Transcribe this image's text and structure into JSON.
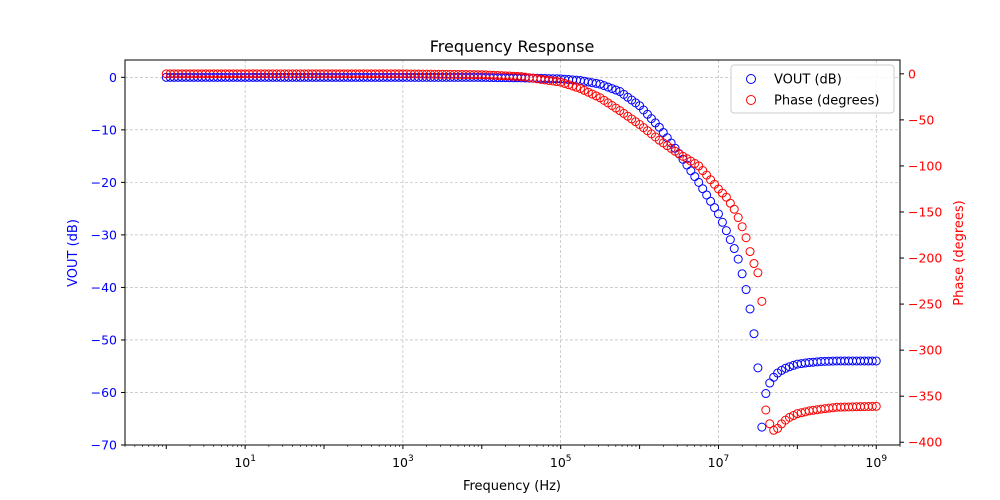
{
  "chart_data": {
    "type": "scatter",
    "title": "Frequency Response",
    "xlabel": "Frequency (Hz)",
    "ylabel_left": "VOUT (dB)",
    "ylabel_right": "Phase (degrees)",
    "xscale": "log",
    "xlim": [
      0.3,
      2000000000
    ],
    "ylim_left": [
      -70,
      3.3
    ],
    "ylim_right": [
      -403,
      15
    ],
    "x_ticks": [
      {
        "value": 10,
        "base": "10",
        "exp": "1"
      },
      {
        "value": 1000,
        "base": "10",
        "exp": "3"
      },
      {
        "value": 100000,
        "base": "10",
        "exp": "5"
      },
      {
        "value": 10000000,
        "base": "10",
        "exp": "7"
      },
      {
        "value": 1000000000,
        "base": "10",
        "exp": "9"
      }
    ],
    "y_ticks_left": [
      {
        "value": 0,
        "label": "0"
      },
      {
        "value": -10,
        "label": "−10"
      },
      {
        "value": -20,
        "label": "−20"
      },
      {
        "value": -30,
        "label": "−30"
      },
      {
        "value": -40,
        "label": "−40"
      },
      {
        "value": -50,
        "label": "−50"
      },
      {
        "value": -60,
        "label": "−60"
      },
      {
        "value": -70,
        "label": "−70"
      }
    ],
    "y_ticks_right": [
      {
        "value": 0,
        "label": "0"
      },
      {
        "value": -50,
        "label": "−50"
      },
      {
        "value": -100,
        "label": "−100"
      },
      {
        "value": -150,
        "label": "−150"
      },
      {
        "value": -200,
        "label": "−200"
      },
      {
        "value": -250,
        "label": "−250"
      },
      {
        "value": -300,
        "label": "−300"
      },
      {
        "value": -350,
        "label": "−350"
      },
      {
        "value": -400,
        "label": "−400"
      }
    ],
    "grid": true,
    "legend_placement": "top-right",
    "sweep": {
      "start_hz": 1,
      "stop_hz": 1000000000,
      "points_per_decade": 20
    },
    "series": [
      {
        "name": "VOUT (dB)",
        "axis": "left",
        "color": "#0000ff",
        "points": [
          [
            1,
            0
          ],
          [
            1000,
            0
          ],
          [
            10000,
            -0.01
          ],
          [
            31600,
            -0.1
          ],
          [
            100000,
            -0.3
          ],
          [
            177800,
            -0.6
          ],
          [
            316200,
            -1.3
          ],
          [
            562300,
            -2.7
          ],
          [
            1000000,
            -5.4
          ],
          [
            1778000,
            -9.5
          ],
          [
            3162000,
            -14.5
          ],
          [
            5623000,
            -20.0
          ],
          [
            10000000,
            -26.0
          ],
          [
            12600000,
            -29.2
          ],
          [
            15850000,
            -32.6
          ],
          [
            17780000,
            -34.6
          ],
          [
            19950000,
            -37.4
          ],
          [
            22390000,
            -40.4
          ],
          [
            25120000,
            -44.1
          ],
          [
            28180000,
            -48.8
          ],
          [
            31620000,
            -55.3
          ],
          [
            35480000,
            -66.6
          ],
          [
            39810000,
            -60.2
          ],
          [
            44670000,
            -58.2
          ],
          [
            50120000,
            -57.1
          ],
          [
            56230000,
            -56.3
          ],
          [
            63100000,
            -55.8
          ],
          [
            70790000,
            -55.4
          ],
          [
            79430000,
            -55.1
          ],
          [
            100000000,
            -54.6
          ],
          [
            141300000,
            -54.3
          ],
          [
            199500000,
            -54.1
          ],
          [
            316200000,
            -54.0
          ],
          [
            1000000000,
            -54.0
          ]
        ]
      },
      {
        "name": "Phase (degrees)",
        "axis": "right",
        "color": "#ff0000",
        "points": [
          [
            1,
            0
          ],
          [
            1000,
            -0.05
          ],
          [
            10000,
            -1
          ],
          [
            31600,
            -3
          ],
          [
            100000,
            -9
          ],
          [
            177800,
            -16
          ],
          [
            316200,
            -26
          ],
          [
            562300,
            -40
          ],
          [
            1000000,
            -55
          ],
          [
            1778000,
            -72
          ],
          [
            3162000,
            -87
          ],
          [
            5623000,
            -100
          ],
          [
            10000000,
            -125
          ],
          [
            12600000,
            -134
          ],
          [
            15850000,
            -147
          ],
          [
            17780000,
            -156
          ],
          [
            19950000,
            -166
          ],
          [
            22390000,
            -178
          ],
          [
            25120000,
            -193
          ],
          [
            28180000,
            -206
          ],
          [
            31620000,
            -216
          ],
          [
            35480000,
            -247
          ],
          [
            39810000,
            -365
          ],
          [
            44670000,
            -380
          ],
          [
            50120000,
            -387
          ],
          [
            56230000,
            -385
          ],
          [
            63100000,
            -380
          ],
          [
            70790000,
            -376
          ],
          [
            79430000,
            -373
          ],
          [
            100000000,
            -369
          ],
          [
            141300000,
            -366
          ],
          [
            199500000,
            -364
          ],
          [
            316200000,
            -362
          ],
          [
            1000000000,
            -361
          ]
        ]
      }
    ]
  }
}
